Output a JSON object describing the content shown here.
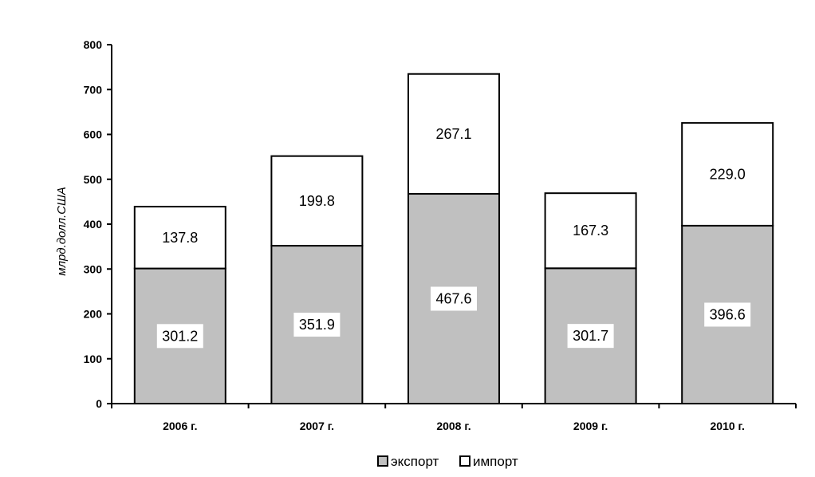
{
  "chart_data": {
    "type": "bar",
    "stacked": true,
    "categories": [
      "2006 г.",
      "2007 г.",
      "2008 г.",
      "2009 г.",
      "2010 г."
    ],
    "series": [
      {
        "name": "экспорт",
        "values": [
          301.2,
          351.9,
          467.6,
          301.7,
          396.6
        ],
        "color": "#c0c0c0"
      },
      {
        "name": "импорт",
        "values": [
          137.8,
          199.8,
          267.1,
          167.3,
          229.0
        ],
        "color": "#ffffff"
      }
    ],
    "title": "",
    "xlabel": "",
    "ylabel": "млрд.долл.США",
    "ylim": [
      0,
      800
    ],
    "yticks": [
      0,
      100,
      200,
      300,
      400,
      500,
      600,
      700,
      800
    ],
    "grid": false,
    "legend_position": "bottom"
  }
}
